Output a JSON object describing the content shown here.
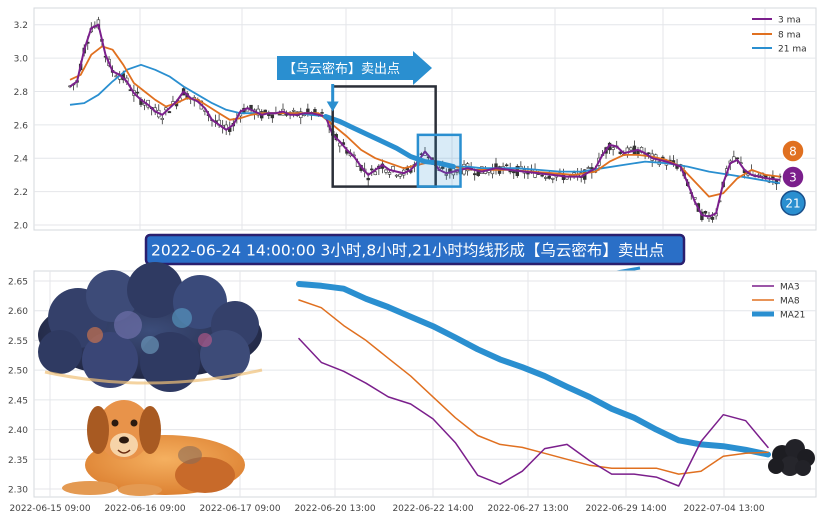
{
  "colors": {
    "ma3": "#7b1f8c",
    "ma8": "#e07020",
    "ma21": "#2a8fd0",
    "candle_up": "#ffffff",
    "candle_down": "#333333",
    "banner_bg": "#2a6fc7",
    "banner_border": "#2a1f6e",
    "arrow_blue": "#2a8fd0",
    "dark_box": "#2b2f38",
    "grid": "#e4e6ea"
  },
  "labels": {
    "top_arrow": "【乌云密布】卖出点",
    "banner": "2022-06-24 14:00:00 3小时,8小时,21小时均线形成【乌云密布】卖出点",
    "badge_ma8": "8",
    "badge_ma3": "3",
    "badge_ma21": "21"
  },
  "icons": [
    "dark-cloud-illustration",
    "dog-illustration",
    "small-dark-cloud-icon",
    "arrow-right-icon",
    "arrow-pointer-icon"
  ],
  "chart_data": [
    {
      "type": "line",
      "name": "top_price_panel",
      "ylim": [
        1.97,
        3.3
      ],
      "yticks": [
        "2.0",
        "2.2",
        "2.4",
        "2.6",
        "2.8",
        "3.0",
        "3.2"
      ],
      "legend": {
        "position": "top-right",
        "entries": [
          "3 ma",
          "8 ma",
          "21 ma"
        ]
      },
      "x_count": 220,
      "series": [
        {
          "name": "3 ma",
          "points": [
            [
              0,
              2.83
            ],
            [
              2,
              2.86
            ],
            [
              4,
              3.05
            ],
            [
              6,
              3.18
            ],
            [
              8,
              3.2
            ],
            [
              10,
              3.02
            ],
            [
              12,
              2.92
            ],
            [
              14,
              2.9
            ],
            [
              16,
              2.86
            ],
            [
              18,
              2.79
            ],
            [
              20,
              2.75
            ],
            [
              22,
              2.72
            ],
            [
              24,
              2.68
            ],
            [
              26,
              2.66
            ],
            [
              28,
              2.7
            ],
            [
              30,
              2.74
            ],
            [
              32,
              2.8
            ],
            [
              34,
              2.76
            ],
            [
              36,
              2.74
            ],
            [
              38,
              2.7
            ],
            [
              40,
              2.63
            ],
            [
              42,
              2.6
            ],
            [
              44,
              2.57
            ],
            [
              46,
              2.6
            ],
            [
              48,
              2.68
            ],
            [
              50,
              2.7
            ],
            [
              52,
              2.68
            ],
            [
              54,
              2.66
            ],
            [
              56,
              2.67
            ],
            [
              58,
              2.67
            ],
            [
              60,
              2.68
            ],
            [
              62,
              2.66
            ],
            [
              64,
              2.66
            ],
            [
              66,
              2.67
            ],
            [
              68,
              2.67
            ],
            [
              70,
              2.66
            ],
            [
              72,
              2.65
            ],
            [
              74,
              2.54
            ],
            [
              76,
              2.5
            ],
            [
              78,
              2.45
            ],
            [
              80,
              2.41
            ],
            [
              82,
              2.35
            ],
            [
              84,
              2.3
            ],
            [
              86,
              2.33
            ],
            [
              88,
              2.36
            ],
            [
              90,
              2.33
            ],
            [
              92,
              2.32
            ],
            [
              94,
              2.31
            ],
            [
              96,
              2.33
            ],
            [
              98,
              2.38
            ],
            [
              100,
              2.44
            ],
            [
              102,
              2.39
            ],
            [
              104,
              2.33
            ],
            [
              106,
              2.31
            ],
            [
              108,
              2.32
            ],
            [
              110,
              2.33
            ],
            [
              112,
              2.34
            ],
            [
              114,
              2.33
            ],
            [
              116,
              2.32
            ],
            [
              118,
              2.33
            ],
            [
              120,
              2.34
            ],
            [
              124,
              2.33
            ],
            [
              128,
              2.32
            ],
            [
              132,
              2.31
            ],
            [
              136,
              2.3
            ],
            [
              140,
              2.29
            ],
            [
              144,
              2.29
            ],
            [
              148,
              2.34
            ],
            [
              150,
              2.42
            ],
            [
              152,
              2.48
            ],
            [
              154,
              2.47
            ],
            [
              156,
              2.43
            ],
            [
              158,
              2.44
            ],
            [
              160,
              2.45
            ],
            [
              162,
              2.43
            ],
            [
              164,
              2.4
            ],
            [
              168,
              2.38
            ],
            [
              172,
              2.35
            ],
            [
              174,
              2.25
            ],
            [
              176,
              2.14
            ],
            [
              178,
              2.06
            ],
            [
              180,
              2.05
            ],
            [
              182,
              2.07
            ],
            [
              184,
              2.25
            ],
            [
              186,
              2.37
            ],
            [
              188,
              2.39
            ],
            [
              190,
              2.33
            ],
            [
              192,
              2.3
            ],
            [
              196,
              2.28
            ],
            [
              200,
              2.27
            ]
          ]
        },
        {
          "name": "8 ma",
          "points": [
            [
              0,
              2.87
            ],
            [
              3,
              2.9
            ],
            [
              6,
              3.02
            ],
            [
              9,
              3.07
            ],
            [
              12,
              3.05
            ],
            [
              15,
              2.96
            ],
            [
              18,
              2.85
            ],
            [
              21,
              2.8
            ],
            [
              24,
              2.75
            ],
            [
              27,
              2.71
            ],
            [
              30,
              2.73
            ],
            [
              33,
              2.76
            ],
            [
              36,
              2.75
            ],
            [
              39,
              2.71
            ],
            [
              42,
              2.67
            ],
            [
              45,
              2.63
            ],
            [
              48,
              2.64
            ],
            [
              51,
              2.66
            ],
            [
              54,
              2.67
            ],
            [
              58,
              2.67
            ],
            [
              62,
              2.67
            ],
            [
              66,
              2.67
            ],
            [
              70,
              2.67
            ],
            [
              74,
              2.6
            ],
            [
              78,
              2.53
            ],
            [
              82,
              2.45
            ],
            [
              86,
              2.4
            ],
            [
              90,
              2.37
            ],
            [
              94,
              2.34
            ],
            [
              98,
              2.36
            ],
            [
              102,
              2.38
            ],
            [
              106,
              2.36
            ],
            [
              110,
              2.34
            ],
            [
              114,
              2.33
            ],
            [
              118,
              2.33
            ],
            [
              124,
              2.33
            ],
            [
              130,
              2.32
            ],
            [
              136,
              2.31
            ],
            [
              142,
              2.3
            ],
            [
              148,
              2.32
            ],
            [
              152,
              2.38
            ],
            [
              156,
              2.42
            ],
            [
              160,
              2.42
            ],
            [
              164,
              2.41
            ],
            [
              168,
              2.39
            ],
            [
              172,
              2.35
            ],
            [
              176,
              2.26
            ],
            [
              180,
              2.17
            ],
            [
              184,
              2.19
            ],
            [
              188,
              2.28
            ],
            [
              192,
              2.33
            ],
            [
              196,
              2.3
            ],
            [
              200,
              2.29
            ]
          ]
        },
        {
          "name": "21 ma",
          "points": [
            [
              0,
              2.72
            ],
            [
              4,
              2.73
            ],
            [
              8,
              2.78
            ],
            [
              12,
              2.86
            ],
            [
              16,
              2.93
            ],
            [
              20,
              2.96
            ],
            [
              24,
              2.93
            ],
            [
              28,
              2.89
            ],
            [
              32,
              2.83
            ],
            [
              36,
              2.78
            ],
            [
              40,
              2.73
            ],
            [
              44,
              2.69
            ],
            [
              48,
              2.67
            ],
            [
              52,
              2.67
            ],
            [
              56,
              2.67
            ],
            [
              60,
              2.67
            ],
            [
              64,
              2.67
            ],
            [
              68,
              2.66
            ],
            [
              72,
              2.65
            ],
            [
              76,
              2.62
            ],
            [
              80,
              2.58
            ],
            [
              84,
              2.54
            ],
            [
              88,
              2.5
            ],
            [
              92,
              2.46
            ],
            [
              96,
              2.41
            ],
            [
              100,
              2.38
            ],
            [
              104,
              2.37
            ],
            [
              108,
              2.35
            ],
            [
              112,
              2.35
            ],
            [
              116,
              2.34
            ],
            [
              120,
              2.34
            ],
            [
              126,
              2.34
            ],
            [
              132,
              2.33
            ],
            [
              138,
              2.32
            ],
            [
              144,
              2.32
            ],
            [
              150,
              2.34
            ],
            [
              156,
              2.36
            ],
            [
              162,
              2.38
            ],
            [
              168,
              2.37
            ],
            [
              174,
              2.35
            ],
            [
              180,
              2.32
            ],
            [
              186,
              2.3
            ],
            [
              192,
              2.28
            ],
            [
              200,
              2.25
            ]
          ]
        }
      ],
      "annotations": {
        "dark_box": {
          "x": [
            74,
            103
          ],
          "y": [
            2.23,
            2.83
          ]
        },
        "blue_box": {
          "x": [
            98,
            110
          ],
          "y": [
            2.23,
            2.54
          ]
        },
        "arrow_target": {
          "x": 74,
          "y": 2.68
        }
      }
    },
    {
      "type": "line",
      "name": "bottom_ma_panel",
      "ylim": [
        2.293,
        2.658
      ],
      "yticks": [
        "2.30",
        "2.35",
        "2.40",
        "2.45",
        "2.50",
        "2.55",
        "2.60",
        "2.65"
      ],
      "xticks": [
        "2022-06-15 09:00",
        "2022-06-16 09:00",
        "2022-06-17 09:00",
        "2022-06-20 13:00",
        "2022-06-22 14:00",
        "2022-06-27 13:00",
        "2022-06-29 14:00",
        "2022-07-04 13:00"
      ],
      "legend": {
        "position": "top-right",
        "entries": [
          "MA3",
          "MA8",
          "MA21"
        ]
      },
      "x_count": 22,
      "series": [
        {
          "name": "MA3",
          "values": [
            2.553,
            2.513,
            2.498,
            2.478,
            2.455,
            2.443,
            2.418,
            2.378,
            2.323,
            2.308,
            2.33,
            2.368,
            2.375,
            2.348,
            2.325,
            2.325,
            2.32,
            2.305,
            2.38,
            2.425,
            2.415,
            2.37
          ]
        },
        {
          "name": "MA8",
          "values": [
            2.618,
            2.605,
            2.575,
            2.55,
            2.52,
            2.49,
            2.455,
            2.42,
            2.39,
            2.375,
            2.37,
            2.36,
            2.35,
            2.34,
            2.335,
            2.335,
            2.335,
            2.325,
            2.33,
            2.355,
            2.36,
            2.362
          ]
        },
        {
          "name": "MA21",
          "values": [
            2.645,
            2.642,
            2.637,
            2.62,
            2.606,
            2.59,
            2.574,
            2.555,
            2.535,
            2.518,
            2.505,
            2.49,
            2.472,
            2.455,
            2.435,
            2.42,
            2.4,
            2.382,
            2.375,
            2.372,
            2.366,
            2.358
          ]
        }
      ]
    }
  ]
}
